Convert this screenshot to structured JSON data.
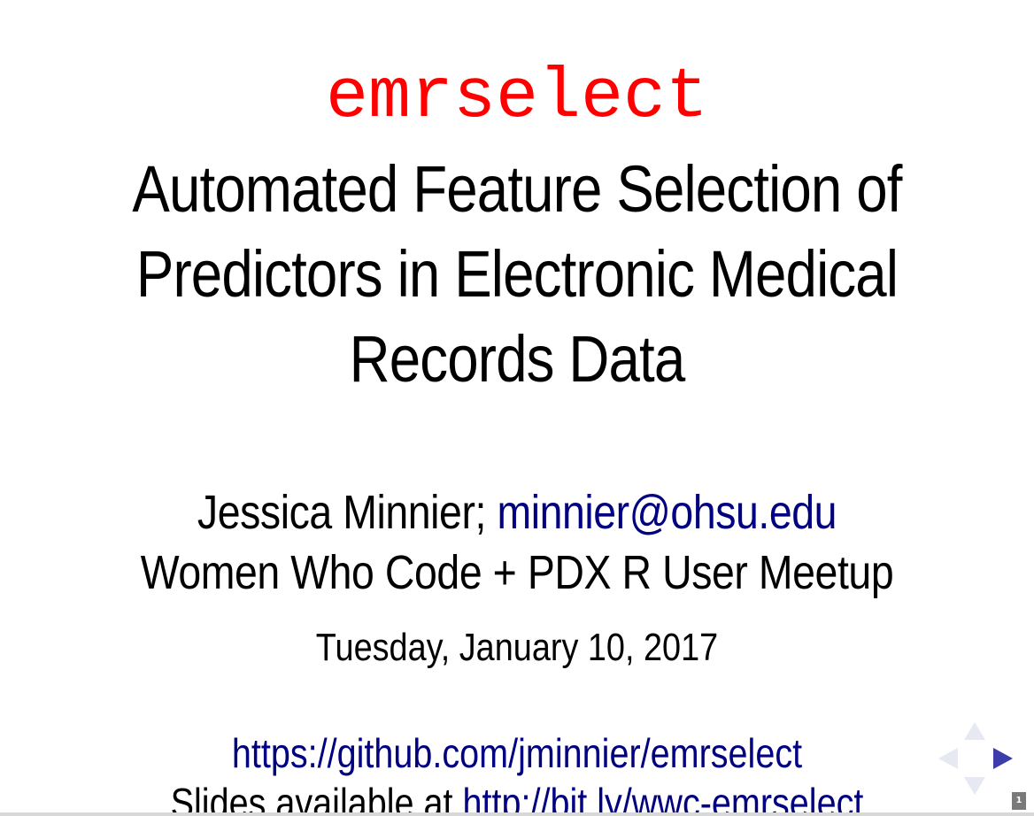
{
  "slide": {
    "package_name": "emrselect",
    "title_lines": [
      "Automated Feature Selection of",
      "Predictors in Electronic Medical",
      "Records Data"
    ],
    "author_name": "Jessica Minnier;",
    "author_email": "minnier@ohsu.edu",
    "event": "Women Who Code + PDX R User Meetup",
    "date": "Tuesday, January 10, 2017",
    "repo_url": "https://github.com/jminnier/emrselect",
    "slides_prefix": "Slides available at",
    "slides_url": "http://bit.ly/wwc-emrselect"
  },
  "navigation": {
    "page_number": "1",
    "icons": [
      "arrow-up-icon",
      "arrow-left-icon",
      "arrow-right-icon",
      "arrow-down-icon"
    ]
  },
  "colors": {
    "package_name": "#ff0000",
    "link": "#000080",
    "nav_active": "#3c3caa",
    "nav_inactive": "#e6e8f2"
  }
}
